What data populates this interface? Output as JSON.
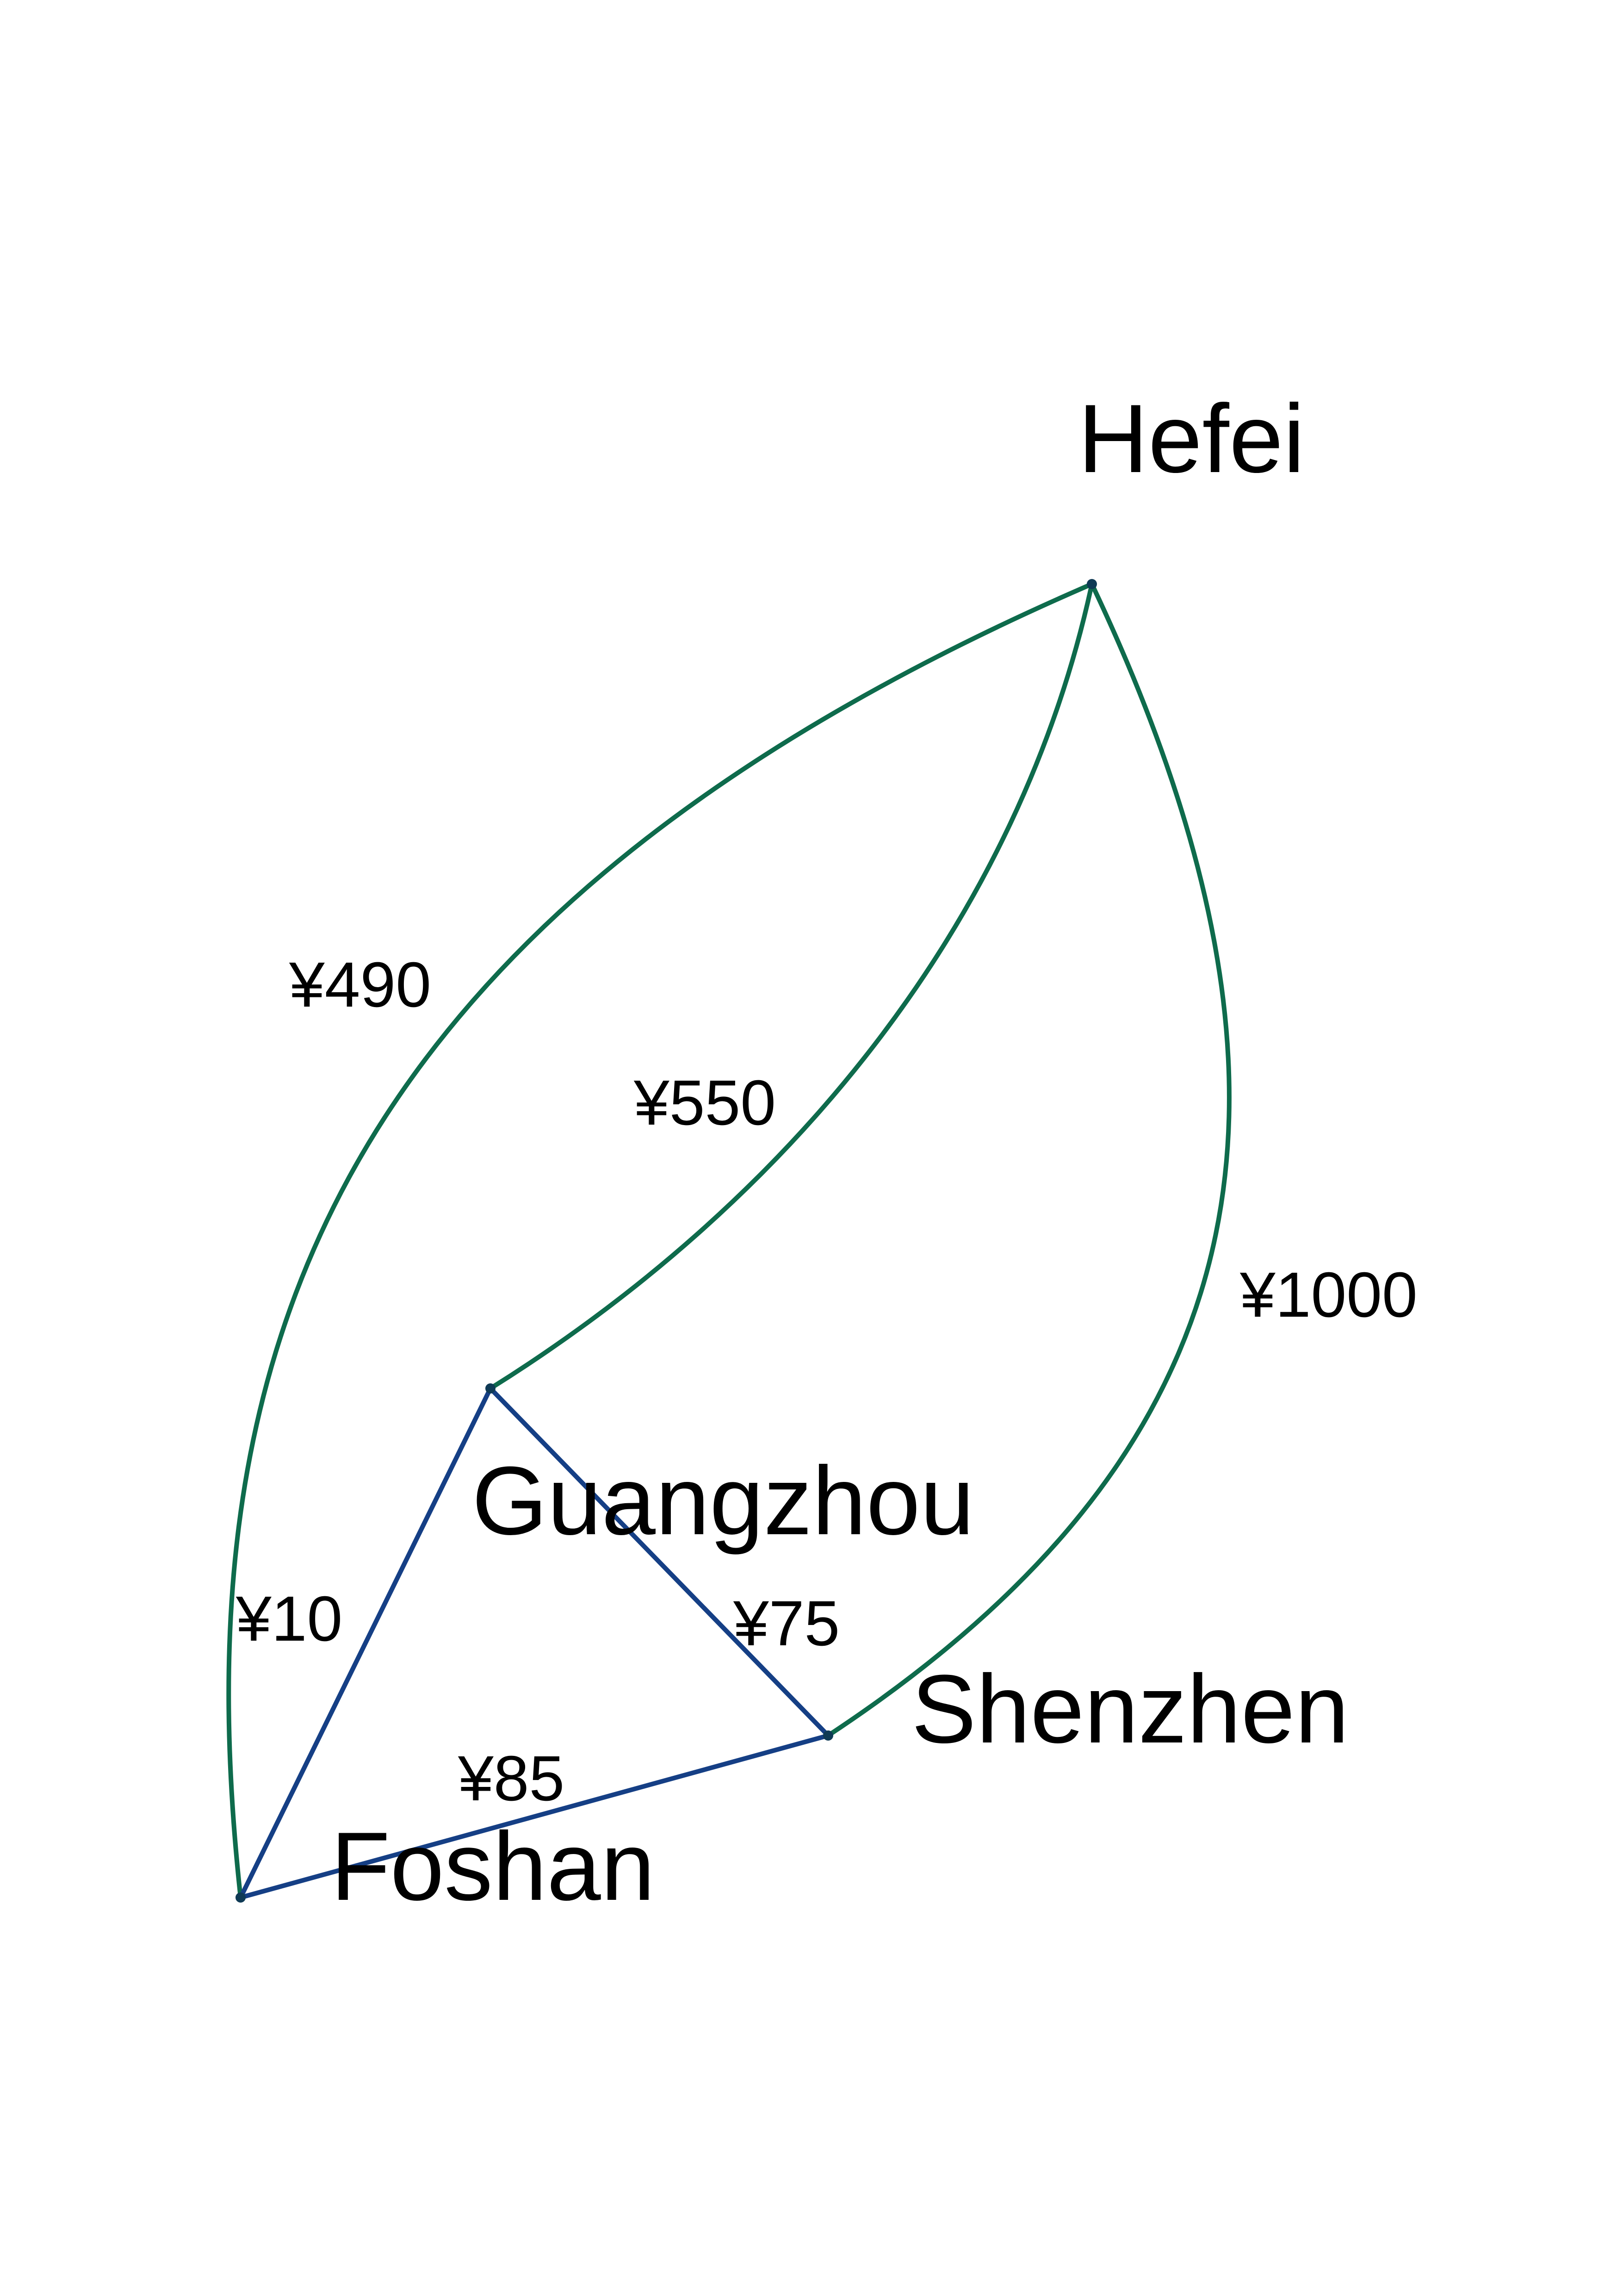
{
  "colors": {
    "air_route": "#0e6b4c",
    "ground_route": "#153f85",
    "node": "#0f3a55",
    "text": "#000000",
    "background": "#ffffff"
  },
  "cities": {
    "hefei": "Hefei",
    "guangzhou": "Guangzhou",
    "shenzhen": "Shenzhen",
    "foshan": "Foshan"
  },
  "routes": [
    {
      "id": "foshan-hefei",
      "from": "Foshan",
      "to": "Hefei",
      "cost": "¥490",
      "mode": "air"
    },
    {
      "id": "guangzhou-hefei",
      "from": "Guangzhou",
      "to": "Hefei",
      "cost": "¥550",
      "mode": "air"
    },
    {
      "id": "shenzhen-hefei",
      "from": "Shenzhen",
      "to": "Hefei",
      "cost": "¥1000",
      "mode": "air"
    },
    {
      "id": "foshan-guangzhou",
      "from": "Foshan",
      "to": "Guangzhou",
      "cost": "¥10",
      "mode": "ground"
    },
    {
      "id": "guangzhou-shenzhen",
      "from": "Guangzhou",
      "to": "Shenzhen",
      "cost": "¥75",
      "mode": "ground"
    },
    {
      "id": "foshan-shenzhen",
      "from": "Foshan",
      "to": "Shenzhen",
      "cost": "¥85",
      "mode": "ground"
    }
  ]
}
